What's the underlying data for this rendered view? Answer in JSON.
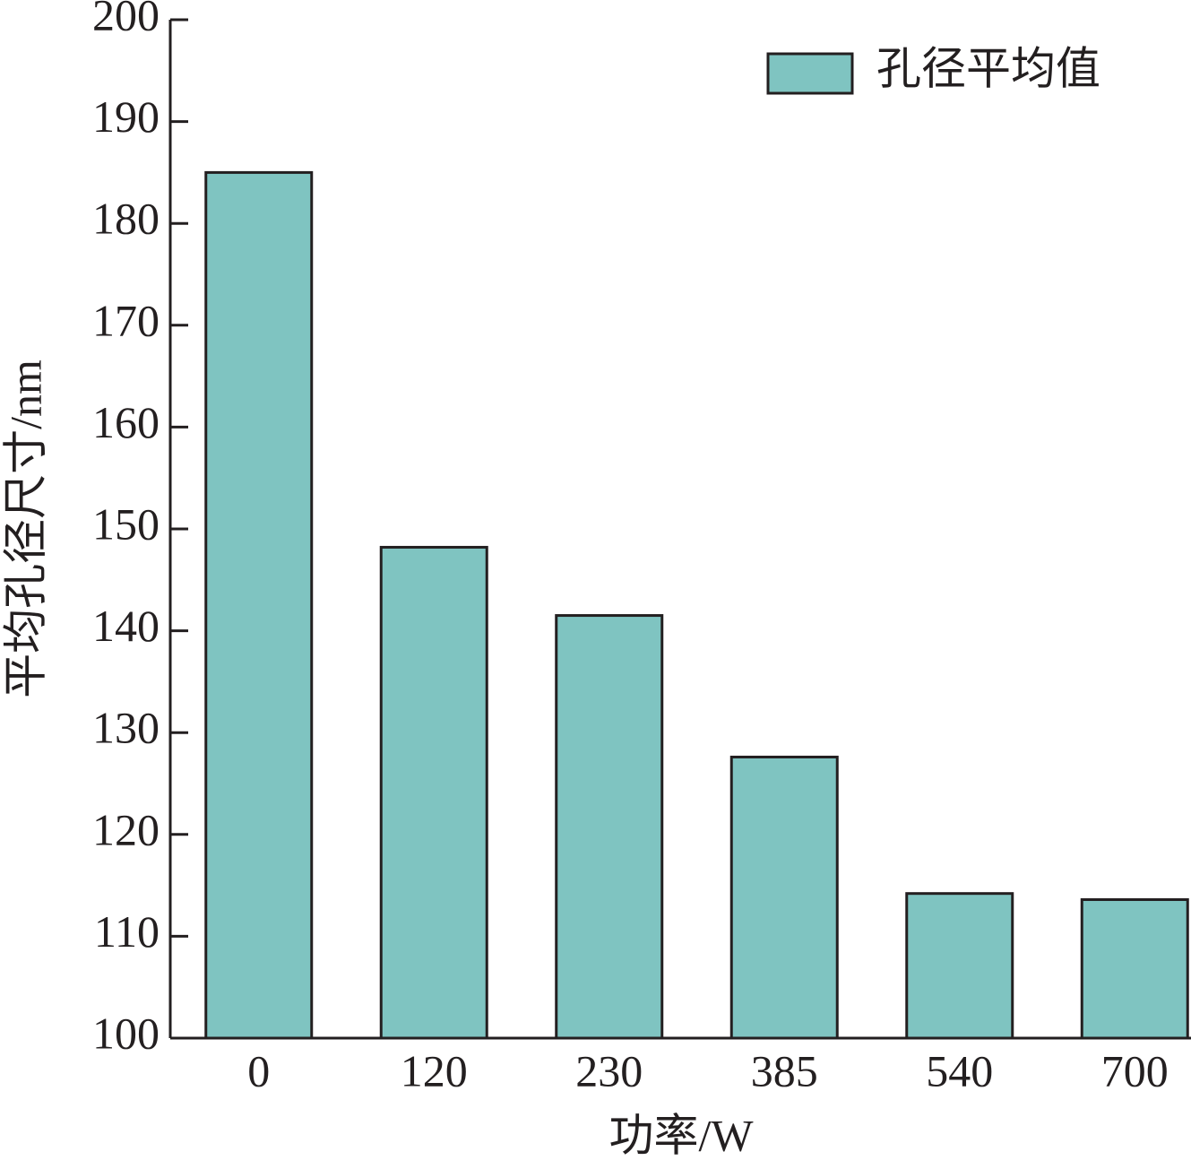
{
  "chart_data": {
    "type": "bar",
    "x_label": "功率/W",
    "y_label": "平均孔径尺寸/nm",
    "categories": [
      "0",
      "120",
      "230",
      "385",
      "540",
      "700"
    ],
    "series": [
      {
        "name": "孔径平均值",
        "color": "#7fc4c1",
        "values": [
          185,
          148.2,
          141.5,
          127.6,
          114.2,
          113.6
        ]
      }
    ],
    "ylim": [
      100,
      200
    ],
    "yticks": [
      100,
      110,
      120,
      130,
      140,
      150,
      160,
      170,
      180,
      190,
      200
    ],
    "legend": "upper right"
  }
}
